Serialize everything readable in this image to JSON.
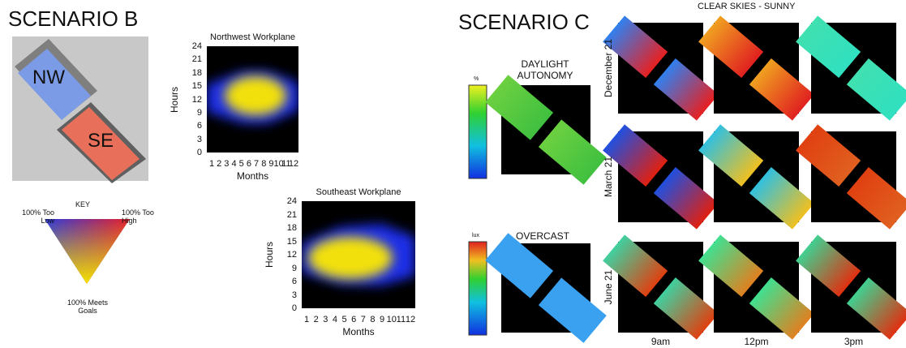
{
  "scenario_b": {
    "title": "SCENARIO B",
    "plan": {
      "nw": "NW",
      "se": "SE"
    },
    "key": {
      "title": "KEY",
      "too_low": "100% Too Low",
      "too_high": "100% Too High",
      "meets": "100% Meets Goals"
    },
    "plots": [
      {
        "title": "Northwest Workplane",
        "ylabel": "Hours",
        "xlabel": "Months",
        "yticks": [
          0,
          3,
          6,
          9,
          12,
          15,
          18,
          21,
          24
        ],
        "xticks": [
          1,
          2,
          3,
          4,
          5,
          6,
          7,
          8,
          9,
          10,
          11,
          12
        ]
      },
      {
        "title": "Southeast Workplane",
        "ylabel": "Hours",
        "xlabel": "Months",
        "yticks": [
          0,
          3,
          6,
          9,
          12,
          15,
          18,
          21,
          24
        ],
        "xticks": [
          1,
          2,
          3,
          4,
          5,
          6,
          7,
          8,
          9,
          10,
          11,
          12
        ]
      }
    ]
  },
  "scenario_c": {
    "title": "SCENARIO C",
    "header": "CLEAR SKIES - SUNNY",
    "daylight_autonomy": "DAYLIGHT AUTONOMY",
    "overcast": "OVERCAST",
    "legend_units": [
      "%",
      "lux"
    ],
    "rows": [
      "December 21",
      "March 21",
      "June 21"
    ],
    "columns": [
      "9am",
      "12pm",
      "3pm"
    ]
  }
}
